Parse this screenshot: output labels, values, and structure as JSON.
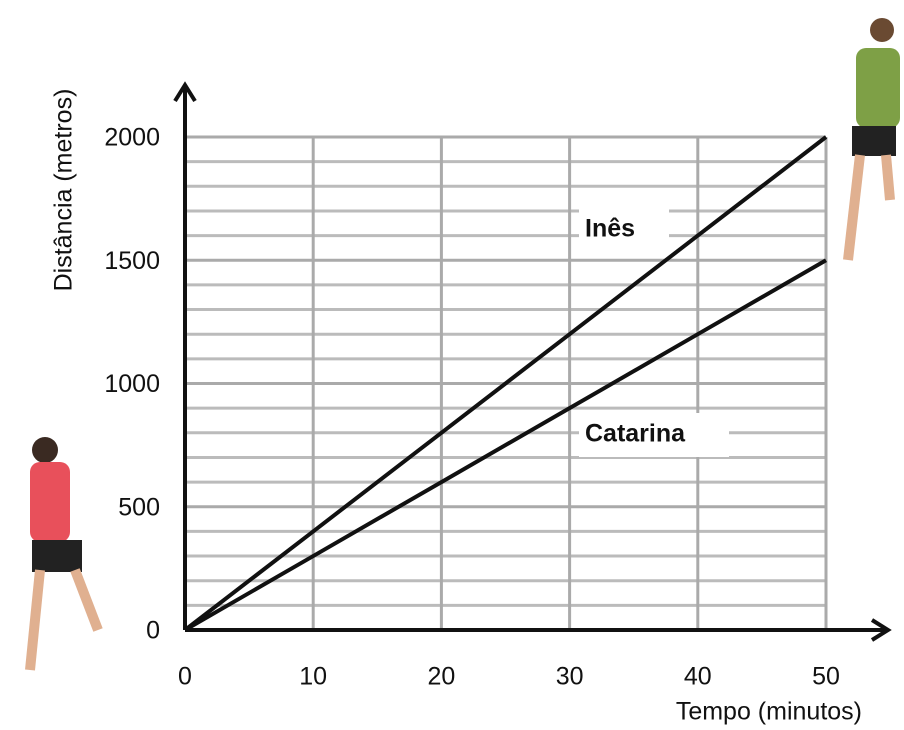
{
  "chart_data": {
    "type": "line",
    "x_label": "Tempo (minutos)",
    "y_label": "Distância (metros)",
    "x": [
      0,
      10,
      20,
      30,
      40,
      50
    ],
    "series": [
      {
        "name": "Inês",
        "color": "#111111",
        "values": [
          0,
          400,
          800,
          1200,
          1600,
          2000
        ]
      },
      {
        "name": "Catarina",
        "color": "#111111",
        "values": [
          0,
          300,
          600,
          900,
          1200,
          1500
        ]
      }
    ],
    "xlim": [
      0,
      50
    ],
    "xticks": [
      0,
      10,
      20,
      30,
      40,
      50
    ],
    "ylim": [
      0,
      2000
    ],
    "yticks": [
      0,
      500,
      1000,
      1500,
      2000
    ],
    "y_minor_ticks": [
      100,
      200,
      300,
      400,
      600,
      700,
      800,
      900,
      1100,
      1200,
      1300,
      1400,
      1600,
      1700,
      1800,
      1900
    ],
    "grid": true
  }
}
